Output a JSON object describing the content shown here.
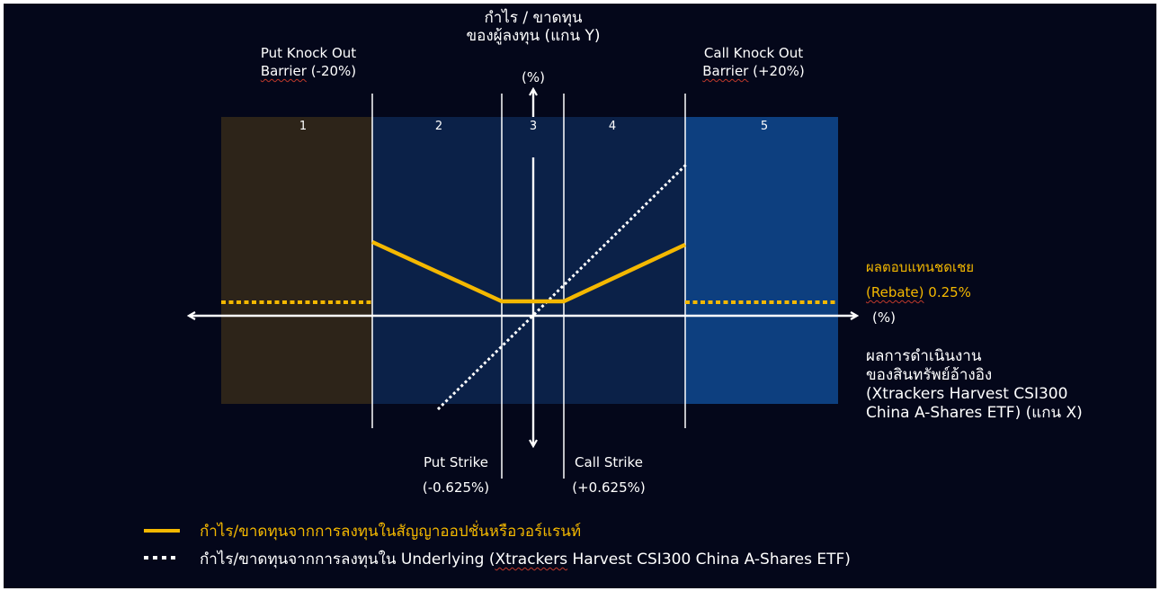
{
  "y_axis": {
    "title_line1": "กำไร / ขาดทุน",
    "title_line2": "ของผู้ลงทุน (แกน Y)",
    "unit": "(%)"
  },
  "x_axis": {
    "unit": "(%)",
    "title_lines": [
      "ผลการดำเนินงาน",
      "ของสินทรัพย์อ้างอิง",
      "(Xtrackers Harvest CSI300",
      "China A-Shares ETF) (แกน X)"
    ]
  },
  "barriers": {
    "put": {
      "line1": "Put Knock Out",
      "line2_word": "Barrier",
      "line2_rest": " (-20%)"
    },
    "call": {
      "line1": "Call Knock Out",
      "line2_word": "Barrier",
      "line2_rest": " (+20%)"
    }
  },
  "strikes": {
    "put": {
      "line1": "Put Strike",
      "line2": "(-0.625%)"
    },
    "call": {
      "line1": "Call Strike",
      "line2": "(+0.625%)"
    }
  },
  "rebate": {
    "line1": "ผลตอบแทนชดเชย",
    "line2_word": "(Rebate)",
    "line2_rest": " 0.25%"
  },
  "zones": [
    "1",
    "2",
    "3",
    "4",
    "5"
  ],
  "legend": [
    {
      "style": "solid",
      "color": "#f4b800",
      "text": "กำไร/ขาดทุนจากการลงทุนในสัญญาออปชั่นหรือวอร์แรนท์"
    },
    {
      "style": "dotted",
      "color": "#ffffff",
      "text_prefix": "กำไร/ขาดทุนจากการลงทุนใน Underlying (",
      "text_word": "Xtrackers",
      "text_suffix": " Harvest CSI300 China A-Shares ETF)"
    }
  ],
  "colors": {
    "background": "#04071a",
    "zone_outer": "#2d2419",
    "zone_inner": "#0b2148",
    "zone_right": "#0d3f7f",
    "payoff": "#f4b800",
    "underlying": "#ffffff"
  }
}
